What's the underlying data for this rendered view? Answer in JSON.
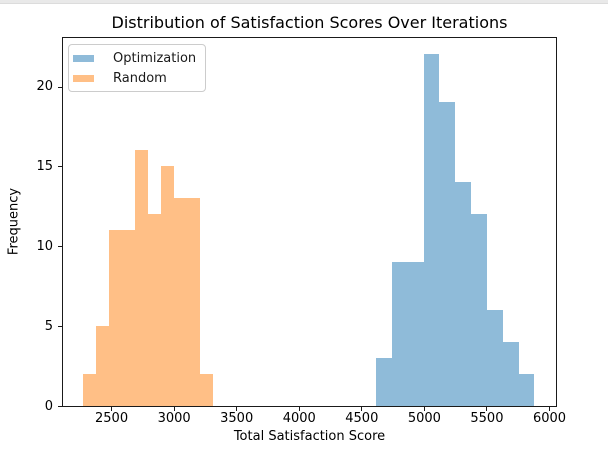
{
  "window": {
    "top_strip_color": "#e9e9e9"
  },
  "chart_data": {
    "type": "histogram",
    "title": "Distribution of Satisfaction Scores Over Iterations",
    "xlabel": "Total Satisfaction Score",
    "ylabel": "Frequency",
    "xlim": [
      2104,
      6060
    ],
    "ylim": [
      0,
      23.13
    ],
    "grid": false,
    "legend_position": "upper left",
    "spine_color": "#1a1a1a",
    "x_ticks": [
      {
        "value": 2500,
        "label": "2500"
      },
      {
        "value": 3000,
        "label": "3000"
      },
      {
        "value": 3500,
        "label": "3500"
      },
      {
        "value": 4000,
        "label": "4000"
      },
      {
        "value": 4500,
        "label": "4500"
      },
      {
        "value": 5000,
        "label": "5000"
      },
      {
        "value": 5500,
        "label": "5500"
      },
      {
        "value": 6000,
        "label": "6000"
      }
    ],
    "y_ticks": [
      {
        "value": 0,
        "label": "0"
      },
      {
        "value": 5,
        "label": "5"
      },
      {
        "value": 10,
        "label": "10"
      },
      {
        "value": 15,
        "label": "15"
      },
      {
        "value": 20,
        "label": "20"
      }
    ],
    "series": [
      {
        "name": "Optimization",
        "color": "#8FBBD9",
        "bin_start": 4606,
        "bin_width": 126.5,
        "counts": [
          3,
          9,
          9,
          22,
          19,
          14,
          12,
          6,
          4,
          2
        ]
      },
      {
        "name": "Random",
        "color": "#FFBF86",
        "bin_start": 2264,
        "bin_width": 103.7,
        "counts": [
          2,
          5,
          11,
          11,
          16,
          12,
          15,
          13,
          13,
          2
        ]
      }
    ]
  }
}
